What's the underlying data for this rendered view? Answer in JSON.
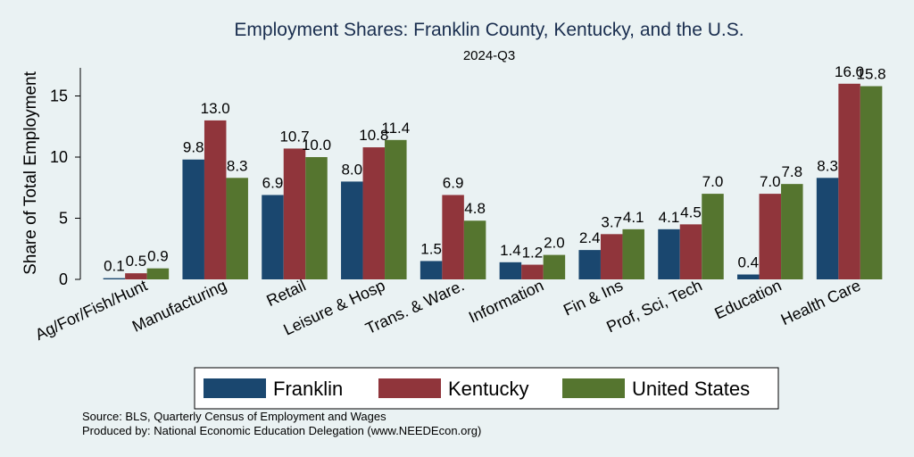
{
  "chart_data": {
    "type": "bar",
    "title": "Employment Shares: Franklin County, Kentucky, and the U.S.",
    "subtitle": "2024-Q3",
    "ylabel": "Share of Total Employment",
    "xlabel": "",
    "ylim": [
      0,
      17.3
    ],
    "yticks": [
      0,
      5,
      10,
      15
    ],
    "categories": [
      "Ag/For/Fish/Hunt",
      "Manufacturing",
      "Retail",
      "Leisure & Hosp",
      "Trans. & Ware.",
      "Information",
      "Fin & Ins",
      "Prof, Sci, Tech",
      "Education",
      "Health Care"
    ],
    "series": [
      {
        "name": "Franklin",
        "color": "#1a476f",
        "values": [
          0.1,
          9.8,
          6.9,
          8.0,
          1.5,
          1.4,
          2.4,
          4.1,
          0.4,
          8.3
        ]
      },
      {
        "name": "Kentucky",
        "color": "#90353b",
        "values": [
          0.5,
          13.0,
          10.7,
          10.8,
          6.9,
          1.2,
          3.7,
          4.5,
          7.0,
          16.0
        ]
      },
      {
        "name": "United States",
        "color": "#55752f",
        "values": [
          0.9,
          8.3,
          10.0,
          11.4,
          4.8,
          2.0,
          4.1,
          7.0,
          7.8,
          15.8
        ]
      }
    ],
    "legend_position": "bottom",
    "grid": false
  },
  "notes": {
    "source": "Source: BLS, Quarterly Census of Employment and Wages",
    "produced": "Produced by: National Economic Education Delegation (www.NEEDEcon.org)"
  }
}
